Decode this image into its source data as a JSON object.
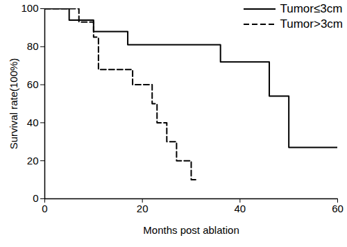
{
  "chart_data": {
    "type": "line",
    "xlabel": "Months post ablation",
    "ylabel": "Survival rate(100%)",
    "xlim": [
      0,
      60
    ],
    "xticks": [
      0,
      20,
      40,
      60
    ],
    "ylim": [
      0,
      100
    ],
    "yticks": [
      0,
      20,
      40,
      60,
      80,
      100
    ],
    "grid": false,
    "legend": "top-right",
    "series": [
      {
        "name": "Tumor≤3cm",
        "color": "#000000",
        "line_style": "solid",
        "x": [
          0,
          5,
          10,
          17,
          36,
          46,
          50,
          60
        ],
        "values": [
          100,
          94,
          88,
          81,
          72,
          54,
          27,
          27
        ]
      },
      {
        "name": "Tumor>3cm",
        "color": "#000000",
        "line_style": "dashed",
        "x": [
          0,
          7,
          10,
          11,
          18,
          22,
          23,
          25,
          27,
          30,
          31
        ],
        "values": [
          100,
          93,
          85,
          68,
          60,
          50,
          40,
          30,
          20,
          10,
          10
        ]
      }
    ]
  }
}
